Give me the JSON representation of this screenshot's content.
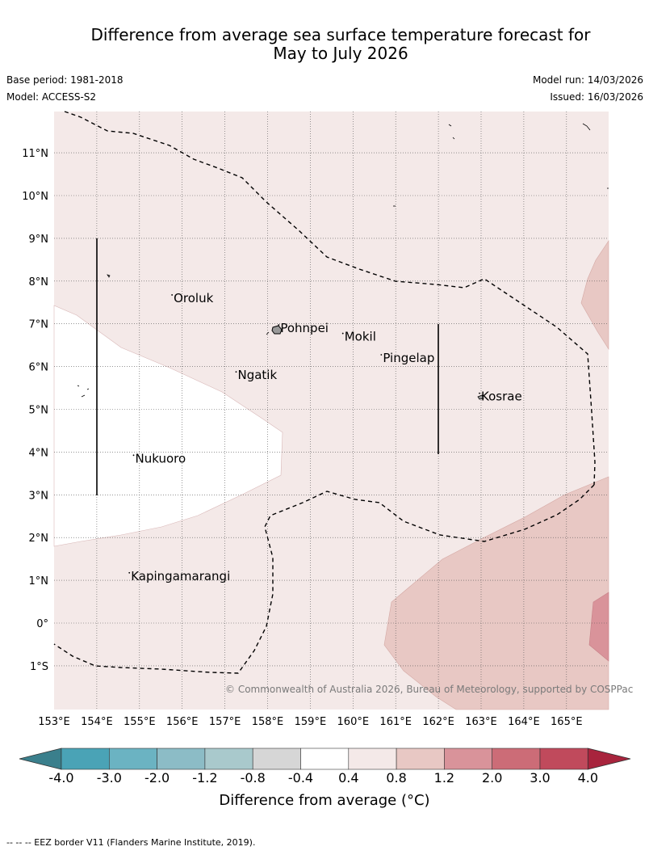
{
  "title_line1": "Difference from average sea surface temperature forecast for",
  "title_line2": "May to July 2026",
  "base_period": "Base period: 1981-2018",
  "model": "Model: ACCESS-S2",
  "model_run": "Model run: 14/03/2026",
  "issued": "Issued: 16/03/2026",
  "copyright": "© Commonwealth of Australia 2026, Bureau of Meteorology, supported by COSPPac",
  "map": {
    "lon_ticks": [
      "153°E",
      "154°E",
      "155°E",
      "156°E",
      "157°E",
      "158°E",
      "159°E",
      "160°E",
      "161°E",
      "162°E",
      "163°E",
      "164°E",
      "165°E"
    ],
    "lat_ticks": [
      "11°N",
      "10°N",
      "9°N",
      "8°N",
      "7°N",
      "6°N",
      "5°N",
      "4°N",
      "3°N",
      "2°N",
      "1°N",
      "0°",
      "1°S"
    ],
    "places": [
      {
        "name": "Oroluk",
        "lon": 155.8,
        "lat": 7.6
      },
      {
        "name": "Pohnpei",
        "lon": 158.3,
        "lat": 6.9
      },
      {
        "name": "Mokil",
        "lon": 159.8,
        "lat": 6.7
      },
      {
        "name": "Pingelap",
        "lon": 160.7,
        "lat": 6.2
      },
      {
        "name": "Ngatik",
        "lon": 157.3,
        "lat": 5.8
      },
      {
        "name": "Kosrae",
        "lon": 163.0,
        "lat": 5.3
      },
      {
        "name": "Nukuoro",
        "lon": 154.9,
        "lat": 3.85
      },
      {
        "name": "Kapingamarangi",
        "lon": 154.8,
        "lat": 1.1
      }
    ]
  },
  "colorbar": {
    "title": "Difference from average (°C)",
    "labels": [
      "-4.0",
      "-3.0",
      "-2.0",
      "-1.2",
      "-0.8",
      "-0.4",
      "0.4",
      "0.8",
      "1.2",
      "2.0",
      "3.0",
      "4.0"
    ],
    "colors": [
      "#4aa3b6",
      "#6bb3c2",
      "#8cbcc6",
      "#a9c9cc",
      "#d6d6d6",
      "#ffffff",
      "#f4e9e8",
      "#e8c8c4",
      "#d9939a",
      "#cc6c77",
      "#c04a5c"
    ],
    "extend_low_color": "#3a7f8c",
    "extend_high_color": "#a8243d"
  },
  "footer": "--  --  -- EEZ border V11 (Flanders Marine Institute, 2019)."
}
